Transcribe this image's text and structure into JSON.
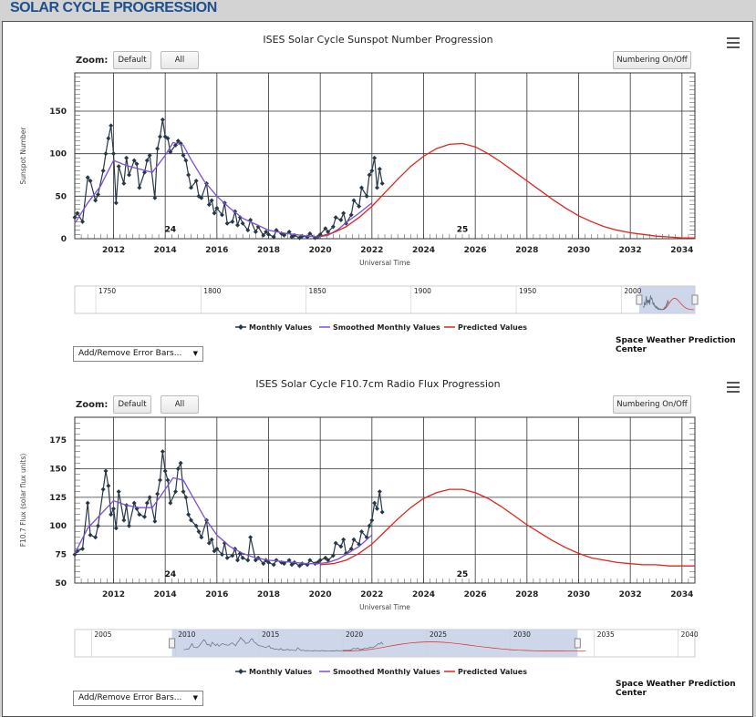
{
  "page": {
    "title": "SOLAR CYCLE PROGRESSION"
  },
  "common": {
    "zoom_label": "Zoom:",
    "zoom_default": "Default",
    "zoom_all": "All",
    "numbering_button": "Numbering On/Off",
    "credit": "Space Weather Prediction Center",
    "error_bars_select": "Add/Remove Error Bars...",
    "legend": [
      "Monthly Values",
      "Smoothed Monthly Values",
      "Predicted Values"
    ],
    "xlabel": "Universal Time",
    "cycle_labels": [
      "24",
      "25"
    ]
  },
  "colors": {
    "monthly": "#263847",
    "smoothed": "#7c4fd9",
    "predicted": "#e0251b",
    "title": "#1f4f8f",
    "navigator_fill": "#c5d0e6"
  },
  "chart_data": [
    {
      "type": "line",
      "title": "ISES Solar Cycle Sunspot Number Progression",
      "xlabel": "Universal Time",
      "ylabel": "Sunspot Number",
      "xlim": [
        2010.5,
        2034.5
      ],
      "ylim": [
        0,
        195
      ],
      "yticks": [
        0,
        50,
        100,
        150
      ],
      "xticks": [
        2012,
        2014,
        2016,
        2018,
        2020,
        2022,
        2024,
        2026,
        2028,
        2030,
        2032,
        2034
      ],
      "cycle_markers": [
        {
          "label": "24",
          "x": 2014.2,
          "y": 11
        },
        {
          "label": "25",
          "x": 2025.5,
          "y": 11
        }
      ],
      "series": [
        {
          "name": "Monthly Values",
          "x": [
            2010.5,
            2010.6,
            2010.8,
            2011.0,
            2011.1,
            2011.3,
            2011.4,
            2011.6,
            2011.7,
            2011.8,
            2011.9,
            2012.0,
            2012.1,
            2012.2,
            2012.4,
            2012.5,
            2012.6,
            2012.8,
            2012.9,
            2013.0,
            2013.2,
            2013.3,
            2013.4,
            2013.6,
            2013.7,
            2013.8,
            2013.9,
            2014.0,
            2014.1,
            2014.2,
            2014.4,
            2014.5,
            2014.6,
            2014.7,
            2014.8,
            2014.9,
            2015.0,
            2015.2,
            2015.3,
            2015.4,
            2015.6,
            2015.7,
            2015.8,
            2015.9,
            2016.0,
            2016.2,
            2016.3,
            2016.4,
            2016.6,
            2016.7,
            2016.8,
            2016.9,
            2017.0,
            2017.2,
            2017.3,
            2017.5,
            2017.6,
            2017.8,
            2017.9,
            2018.0,
            2018.2,
            2018.3,
            2018.5,
            2018.6,
            2018.8,
            2018.9,
            2019.0,
            2019.2,
            2019.3,
            2019.5,
            2019.6,
            2019.8,
            2019.9,
            2020.0,
            2020.2,
            2020.3,
            2020.5,
            2020.6,
            2020.8,
            2020.9,
            2021.0,
            2021.2,
            2021.3,
            2021.5,
            2021.6,
            2021.8,
            2021.9,
            2022.0,
            2022.1,
            2022.2,
            2022.3,
            2022.4
          ],
          "values": [
            25,
            30,
            20,
            72,
            68,
            45,
            52,
            80,
            100,
            118,
            133,
            100,
            42,
            85,
            65,
            95,
            75,
            92,
            88,
            60,
            78,
            92,
            98,
            48,
            106,
            120,
            140,
            120,
            118,
            102,
            110,
            115,
            112,
            98,
            92,
            75,
            60,
            68,
            50,
            48,
            65,
            40,
            45,
            30,
            36,
            28,
            42,
            18,
            20,
            32,
            16,
            25,
            18,
            10,
            22,
            8,
            14,
            4,
            8,
            5,
            2,
            10,
            6,
            4,
            8,
            2,
            4,
            1,
            3,
            2,
            6,
            1,
            2,
            5,
            12,
            8,
            14,
            25,
            22,
            30,
            18,
            28,
            45,
            38,
            60,
            50,
            75,
            80,
            95,
            60,
            82,
            65
          ],
          "color": "#263847"
        },
        {
          "name": "Smoothed Monthly Values",
          "x": [
            2010.5,
            2011.0,
            2011.5,
            2012.0,
            2012.5,
            2013.0,
            2013.5,
            2014.0,
            2014.3,
            2014.7,
            2015.0,
            2015.5,
            2016.0,
            2016.5,
            2017.0,
            2017.5,
            2018.0,
            2018.5,
            2019.0,
            2019.5,
            2019.9,
            2020.3,
            2020.7,
            2021.0,
            2021.5,
            2022.0
          ],
          "values": [
            18,
            42,
            62,
            92,
            86,
            82,
            78,
            98,
            113,
            110,
            93,
            68,
            50,
            36,
            24,
            17,
            10,
            7,
            5,
            3,
            2,
            4,
            11,
            19,
            30,
            42
          ],
          "color": "#7c4fd9"
        },
        {
          "name": "Predicted Values",
          "x": [
            2020.0,
            2020.5,
            2021.0,
            2021.5,
            2022.0,
            2022.5,
            2023.0,
            2023.5,
            2024.0,
            2024.5,
            2025.0,
            2025.5,
            2026.0,
            2026.5,
            2027.0,
            2027.5,
            2028.0,
            2028.5,
            2029.0,
            2029.5,
            2030.0,
            2030.5,
            2031.0,
            2031.5,
            2032.0,
            2032.5,
            2033.0,
            2033.5,
            2034.0,
            2034.5
          ],
          "values": [
            3,
            7,
            14,
            25,
            38,
            54,
            70,
            85,
            97,
            106,
            111,
            112,
            108,
            100,
            90,
            79,
            68,
            57,
            46,
            36,
            27,
            20,
            14,
            10,
            7,
            5,
            3,
            2,
            1,
            1
          ],
          "color": "#e0251b"
        }
      ],
      "navigator": {
        "ticks": [
          "1750",
          "1800",
          "1850",
          "1900",
          "1950",
          "2000"
        ],
        "range": [
          1740,
          2035
        ],
        "selected": [
          2008.5,
          2035
        ]
      }
    },
    {
      "type": "line",
      "title": "ISES Solar Cycle F10.7cm Radio Flux Progression",
      "xlabel": "Universal Time",
      "ylabel": "F10.7 Flux (solar flux units)",
      "xlim": [
        2010.5,
        2034.5
      ],
      "ylim": [
        50,
        195
      ],
      "yticks": [
        50,
        75,
        100,
        125,
        150,
        175
      ],
      "xticks": [
        2012,
        2014,
        2016,
        2018,
        2020,
        2022,
        2024,
        2026,
        2028,
        2030,
        2032,
        2034
      ],
      "cycle_markers": [
        {
          "label": "24",
          "x": 2014.2,
          "y": 58
        },
        {
          "label": "25",
          "x": 2025.5,
          "y": 58
        }
      ],
      "series": [
        {
          "name": "Monthly Values",
          "x": [
            2010.5,
            2010.6,
            2010.8,
            2011.0,
            2011.1,
            2011.3,
            2011.4,
            2011.6,
            2011.7,
            2011.8,
            2011.9,
            2012.0,
            2012.1,
            2012.2,
            2012.4,
            2012.5,
            2012.6,
            2012.8,
            2012.9,
            2013.0,
            2013.2,
            2013.3,
            2013.4,
            2013.6,
            2013.7,
            2013.8,
            2013.9,
            2014.0,
            2014.1,
            2014.2,
            2014.4,
            2014.5,
            2014.6,
            2014.7,
            2014.8,
            2014.9,
            2015.0,
            2015.2,
            2015.3,
            2015.4,
            2015.6,
            2015.7,
            2015.8,
            2015.9,
            2016.0,
            2016.2,
            2016.3,
            2016.4,
            2016.6,
            2016.7,
            2016.8,
            2016.9,
            2017.0,
            2017.2,
            2017.3,
            2017.5,
            2017.6,
            2017.8,
            2017.9,
            2018.0,
            2018.2,
            2018.3,
            2018.5,
            2018.6,
            2018.8,
            2018.9,
            2019.0,
            2019.2,
            2019.3,
            2019.5,
            2019.6,
            2019.8,
            2019.9,
            2020.0,
            2020.2,
            2020.3,
            2020.5,
            2020.6,
            2020.8,
            2020.9,
            2021.0,
            2021.2,
            2021.3,
            2021.5,
            2021.6,
            2021.8,
            2021.9,
            2022.0,
            2022.1,
            2022.2,
            2022.3,
            2022.4
          ],
          "values": [
            75,
            78,
            80,
            120,
            92,
            90,
            100,
            132,
            148,
            135,
            110,
            115,
            98,
            130,
            105,
            118,
            100,
            120,
            115,
            110,
            108,
            120,
            125,
            104,
            128,
            140,
            165,
            148,
            140,
            120,
            130,
            150,
            155,
            130,
            125,
            110,
            105,
            100,
            95,
            90,
            105,
            85,
            88,
            78,
            80,
            75,
            85,
            72,
            74,
            80,
            70,
            76,
            72,
            70,
            90,
            70,
            72,
            67,
            70,
            68,
            66,
            70,
            68,
            67,
            70,
            66,
            68,
            65,
            67,
            66,
            70,
            67,
            68,
            70,
            72,
            70,
            74,
            85,
            82,
            88,
            76,
            80,
            88,
            84,
            95,
            90,
            100,
            105,
            120,
            115,
            130,
            112
          ],
          "color": "#263847"
        },
        {
          "name": "Smoothed Monthly Values",
          "x": [
            2010.5,
            2011.0,
            2011.5,
            2012.0,
            2012.5,
            2013.0,
            2013.5,
            2014.0,
            2014.3,
            2014.7,
            2015.0,
            2015.5,
            2016.0,
            2016.5,
            2017.0,
            2017.5,
            2018.0,
            2018.5,
            2019.0,
            2019.5,
            2019.9,
            2020.3,
            2020.7,
            2021.0,
            2021.5,
            2022.0
          ],
          "values": [
            76,
            98,
            110,
            122,
            118,
            116,
            116,
            132,
            142,
            140,
            128,
            108,
            92,
            82,
            76,
            72,
            70,
            69,
            68,
            67,
            67,
            68,
            71,
            75,
            82,
            92
          ],
          "color": "#7c4fd9"
        },
        {
          "name": "Predicted Values",
          "x": [
            2020.0,
            2020.5,
            2021.0,
            2021.5,
            2022.0,
            2022.5,
            2023.0,
            2023.5,
            2024.0,
            2024.5,
            2025.0,
            2025.5,
            2026.0,
            2026.5,
            2027.0,
            2027.5,
            2028.0,
            2028.5,
            2029.0,
            2029.5,
            2030.0,
            2030.5,
            2031.0,
            2031.5,
            2032.0,
            2032.5,
            2033.0,
            2033.5,
            2034.0,
            2034.5
          ],
          "values": [
            66,
            67,
            70,
            76,
            84,
            95,
            106,
            116,
            124,
            129,
            132,
            132,
            129,
            124,
            117,
            109,
            101,
            94,
            87,
            81,
            76,
            72,
            70,
            68,
            67,
            66,
            66,
            65,
            65,
            65
          ],
          "color": "#e0251b"
        }
      ],
      "navigator": {
        "ticks": [
          "2005",
          "2010",
          "2015",
          "2020",
          "2025",
          "2030",
          "2035",
          "2040"
        ],
        "range": [
          2004,
          2041
        ],
        "selected": [
          2009.8,
          2034
        ]
      }
    }
  ]
}
